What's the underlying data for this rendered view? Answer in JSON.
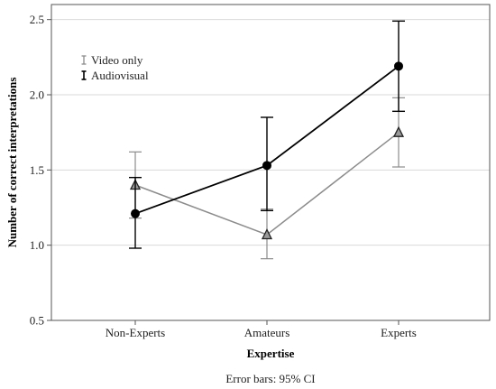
{
  "chart_data": {
    "type": "line",
    "categories": [
      "Non-Experts",
      "Amateurs",
      "Experts"
    ],
    "xlabel": "Expertise",
    "ylabel": "Number of correct interpretations",
    "ylim": [
      0.5,
      2.6
    ],
    "yticks": [
      "0.5",
      "1.0",
      "1.5",
      "2.0",
      "2.5"
    ],
    "grid": true,
    "legend": "top-left",
    "note": "Error bars: 95% CI",
    "series": [
      {
        "name": "Video only",
        "color": "#8c8c8c",
        "marker": "triangle",
        "values": [
          1.4,
          1.07,
          1.75
        ],
        "ci_low": [
          1.18,
          0.91,
          1.52
        ],
        "ci_high": [
          1.62,
          1.24,
          1.98
        ]
      },
      {
        "name": "Audiovisual",
        "color": "#000000",
        "marker": "circle",
        "values": [
          1.21,
          1.53,
          2.19
        ],
        "ci_low": [
          0.98,
          1.23,
          1.89
        ],
        "ci_high": [
          1.45,
          1.85,
          2.49
        ]
      }
    ]
  }
}
